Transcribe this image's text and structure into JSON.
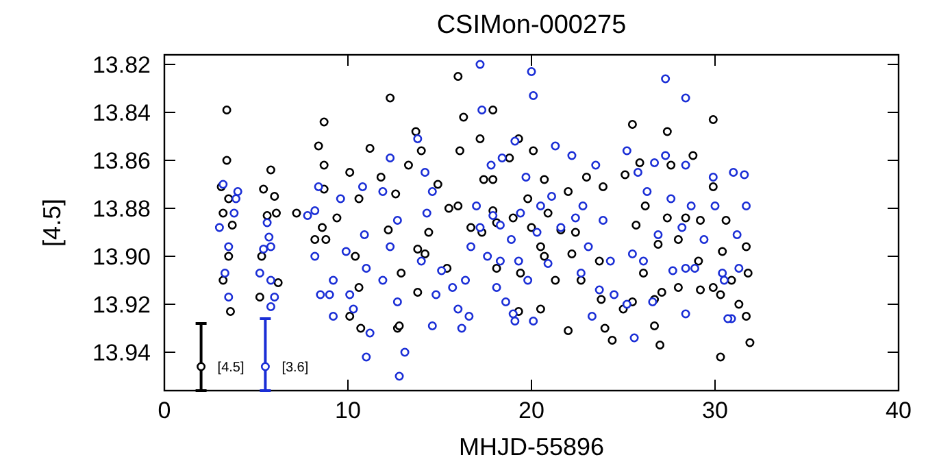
{
  "chart_data": {
    "type": "scatter",
    "title": "CSIMon-000275",
    "xlabel": "MHJD-55896",
    "ylabel": "[4.5]",
    "xlim": [
      0,
      40
    ],
    "xticks": [
      0,
      10,
      20,
      30,
      40
    ],
    "ylim": [
      13.956,
      13.816
    ],
    "yticks": [
      13.82,
      13.84,
      13.86,
      13.88,
      {
        "value": 13.9,
        "label": "13.90"
      },
      13.92,
      13.94
    ],
    "marker": "circle",
    "grid": false,
    "series": [
      {
        "color": "#000000",
        "x": [
          3.4,
          3.4,
          3.1,
          3.5,
          3.2,
          3.7,
          3.5,
          3.2,
          3.6,
          5.8,
          5.4,
          6.0,
          5.6,
          6.1,
          5.3,
          6.2,
          5.2,
          7.2,
          8.7,
          8.4,
          8.7,
          8.7,
          8.6,
          8.8,
          8.2,
          9.4,
          10.1,
          10.6,
          10.4,
          10.6,
          10.1,
          10.7,
          12.3,
          11.2,
          11.8,
          12.6,
          12.2,
          12.9,
          12.7,
          13.7,
          13.3,
          14.0,
          14.9,
          16.1,
          16.3,
          17.2,
          17.4,
          16.0,
          16.7,
          17.9,
          18.1,
          15.4,
          13.8,
          14.4,
          16.0,
          12.8,
          13.8,
          14.2,
          15.5,
          17.3,
          17.9,
          19.3,
          20.1,
          18.8,
          20.7,
          19.8,
          17.9,
          19.0,
          20.9,
          22.0,
          23.0,
          23.9,
          20.0,
          21.6,
          20.5,
          22.4,
          23.7,
          18.1,
          19.4,
          20.7,
          22.2,
          21.3,
          20.5,
          19.3,
          22.7,
          22.0,
          24.0,
          23.8,
          25.5,
          27.4,
          29.9,
          28.8,
          25.9,
          27.6,
          25.1,
          29.9,
          26.2,
          27.4,
          28.4,
          25.7,
          29.2,
          30.6,
          26.9,
          28.0,
          29.1,
          30.4,
          31.7,
          26.1,
          28.0,
          29.9,
          30.9,
          31.8,
          26.7,
          27.1,
          25.5,
          29.2,
          31.3,
          31.7,
          30.3,
          26.7,
          27.0,
          30.3,
          31.9,
          25.0,
          24.4
        ],
        "values": [
          13.839,
          13.86,
          13.871,
          13.876,
          13.882,
          13.887,
          13.9,
          13.91,
          13.923,
          13.864,
          13.872,
          13.875,
          13.883,
          13.882,
          13.9,
          13.911,
          13.917,
          13.882,
          13.844,
          13.854,
          13.862,
          13.872,
          13.888,
          13.893,
          13.893,
          13.884,
          13.865,
          13.876,
          13.9,
          13.913,
          13.925,
          13.93,
          13.834,
          13.855,
          13.867,
          13.874,
          13.889,
          13.907,
          13.93,
          13.848,
          13.862,
          13.856,
          13.87,
          13.856,
          13.842,
          13.851,
          13.868,
          13.879,
          13.888,
          13.868,
          13.886,
          13.905,
          13.897,
          13.89,
          13.825,
          13.929,
          13.915,
          13.899,
          13.88,
          13.89,
          13.839,
          13.851,
          13.856,
          13.859,
          13.868,
          13.876,
          13.881,
          13.884,
          13.882,
          13.873,
          13.867,
          13.871,
          13.888,
          13.889,
          13.896,
          13.89,
          13.902,
          13.905,
          13.907,
          13.9,
          13.899,
          13.91,
          13.922,
          13.923,
          13.91,
          13.931,
          13.93,
          13.918,
          13.845,
          13.848,
          13.843,
          13.858,
          13.861,
          13.862,
          13.866,
          13.871,
          13.879,
          13.884,
          13.884,
          13.887,
          13.885,
          13.885,
          13.895,
          13.893,
          13.902,
          13.898,
          13.896,
          13.907,
          13.913,
          13.913,
          13.91,
          13.907,
          13.918,
          13.915,
          13.919,
          13.914,
          13.92,
          13.925,
          13.916,
          13.929,
          13.937,
          13.942,
          13.936,
          13.922,
          13.935
        ]
      },
      {
        "color": "#1a2ed6",
        "x": [
          3.2,
          3.9,
          3.0,
          3.5,
          3.8,
          3.3,
          3.5,
          4.0,
          5.6,
          5.7,
          5.4,
          5.8,
          5.2,
          5.8,
          6.0,
          5.8,
          7.8,
          8.2,
          8.4,
          8.2,
          8.5,
          9.0,
          9.2,
          9.9,
          9.6,
          10.8,
          10.9,
          11.0,
          10.1,
          10.3,
          11.2,
          11.0,
          9.2,
          11.9,
          12.3,
          11.9,
          12.7,
          12.3,
          12.7,
          12.8,
          13.1,
          13.8,
          14.2,
          14.6,
          14.3,
          14.0,
          15.1,
          14.8,
          15.7,
          16.4,
          16.7,
          17.2,
          17.0,
          16.6,
          16.0,
          17.9,
          17.8,
          17.3,
          17.6,
          18.1,
          16.2,
          14.6,
          17.2,
          20.0,
          20.1,
          18.4,
          19.1,
          19.7,
          21.3,
          22.2,
          23.5,
          19.4,
          20.5,
          21.1,
          22.8,
          22.4,
          23.9,
          18.3,
          18.9,
          20.3,
          21.6,
          23.1,
          18.3,
          19.3,
          20.9,
          19.8,
          18.6,
          19.1,
          19.0,
          20.1,
          23.3,
          23.7,
          22.7,
          24.3,
          25.2,
          25.8,
          26.7,
          27.3,
          28.4,
          29.9,
          31.0,
          31.6,
          27.3,
          28.4,
          26.3,
          27.6,
          28.7,
          30.0,
          31.7,
          26.9,
          28.2,
          29.4,
          31.2,
          25.5,
          26.1,
          27.7,
          28.4,
          30.4,
          31.3,
          28.9,
          26.6,
          28.4,
          30.5,
          30.9,
          25.2,
          25.6,
          30.7,
          24.5
        ],
        "values": [
          13.87,
          13.876,
          13.888,
          13.896,
          13.882,
          13.907,
          13.917,
          13.873,
          13.886,
          13.892,
          13.897,
          13.896,
          13.907,
          13.91,
          13.917,
          13.921,
          13.883,
          13.881,
          13.871,
          13.9,
          13.916,
          13.916,
          13.91,
          13.898,
          13.876,
          13.871,
          13.891,
          13.905,
          13.916,
          13.922,
          13.932,
          13.942,
          13.925,
          13.91,
          13.859,
          13.873,
          13.885,
          13.896,
          13.919,
          13.95,
          13.94,
          13.851,
          13.865,
          13.873,
          13.882,
          13.902,
          13.906,
          13.916,
          13.913,
          13.91,
          13.896,
          13.888,
          13.879,
          13.925,
          13.922,
          13.883,
          13.862,
          13.839,
          13.9,
          13.913,
          13.93,
          13.929,
          13.82,
          13.823,
          13.833,
          13.859,
          13.852,
          13.867,
          13.854,
          13.858,
          13.862,
          13.882,
          13.879,
          13.875,
          13.879,
          13.884,
          13.885,
          13.887,
          13.893,
          13.89,
          13.888,
          13.896,
          13.902,
          13.902,
          13.903,
          13.91,
          13.919,
          13.927,
          13.924,
          13.927,
          13.925,
          13.914,
          13.907,
          13.902,
          13.856,
          13.865,
          13.861,
          13.858,
          13.862,
          13.867,
          13.865,
          13.866,
          13.826,
          13.834,
          13.873,
          13.876,
          13.879,
          13.879,
          13.879,
          13.891,
          13.888,
          13.893,
          13.891,
          13.899,
          13.902,
          13.906,
          13.905,
          13.907,
          13.905,
          13.905,
          13.919,
          13.924,
          13.91,
          13.926,
          13.92,
          13.934,
          13.926,
          13.916
        ]
      },
      {
        "name": "[4.5]",
        "color": "#000000",
        "x": [
          2.0
        ],
        "values": [
          13.946
        ],
        "errors": [
          [
            13.928,
            13.956
          ]
        ]
      },
      {
        "name": "[3.6]",
        "color": "#1a2ed6",
        "x": [
          5.5
        ],
        "values": [
          13.946
        ],
        "errors": [
          [
            13.926,
            13.956
          ]
        ]
      }
    ]
  }
}
